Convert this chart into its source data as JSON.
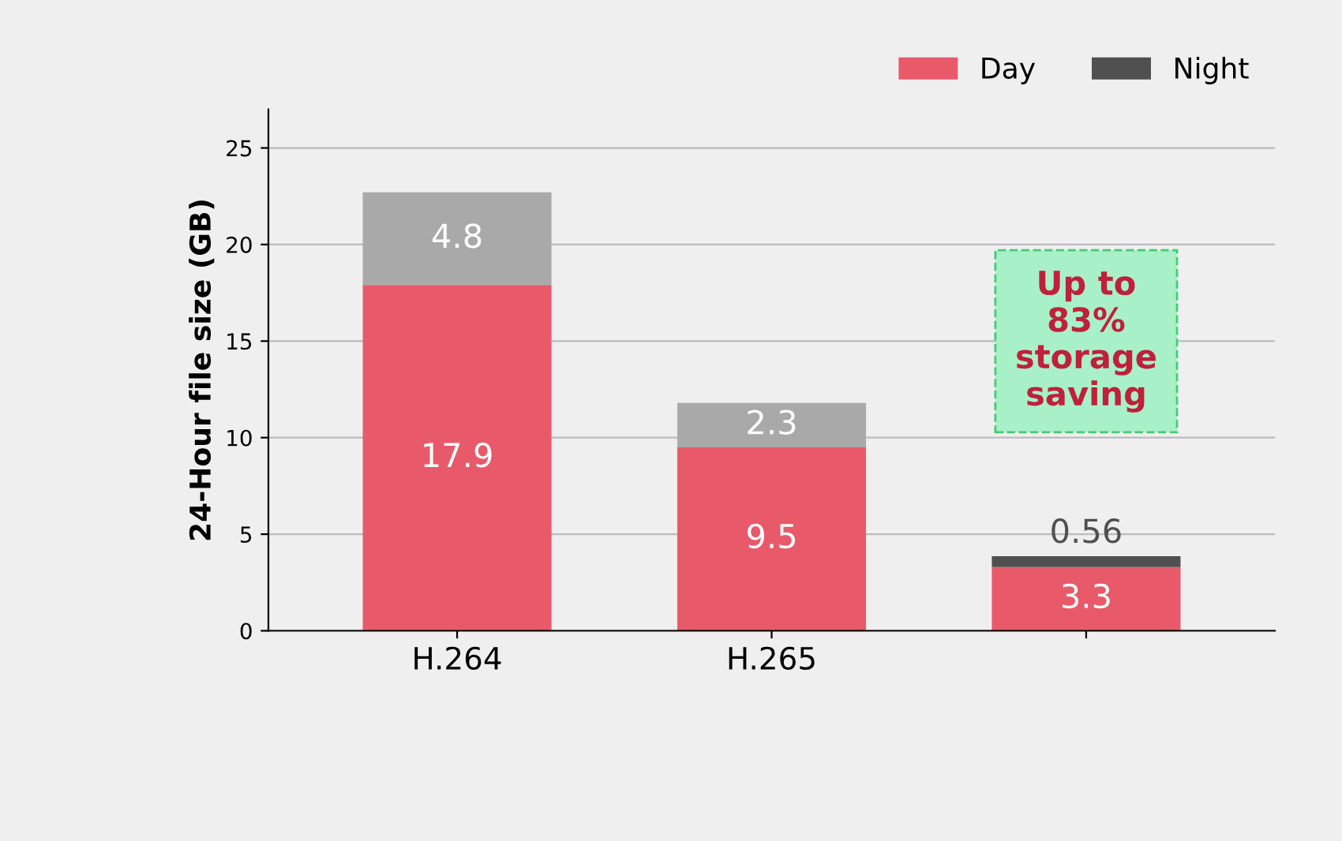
{
  "chart_data": {
    "type": "bar",
    "stacked": true,
    "ylabel": "24-Hour file size (GB)",
    "categories": [
      "H.264",
      "H.265",
      null
    ],
    "series": [
      {
        "name": "Day",
        "color": "#e85a6a",
        "values": [
          17.9,
          9.5,
          3.3
        ]
      },
      {
        "name": "Night",
        "color": "#505050",
        "colors": [
          "#a9a9a9",
          "#a9a9a9",
          "#505050"
        ],
        "values": [
          4.8,
          2.3,
          0.56
        ]
      }
    ],
    "ylim": [
      0,
      27
    ],
    "yticks": [
      0,
      5,
      10,
      15,
      20,
      25
    ],
    "grid": "y",
    "legend": "top right",
    "data_labels": true,
    "annotations": [
      "Up to\n83%\nstorage\nsaving"
    ]
  }
}
